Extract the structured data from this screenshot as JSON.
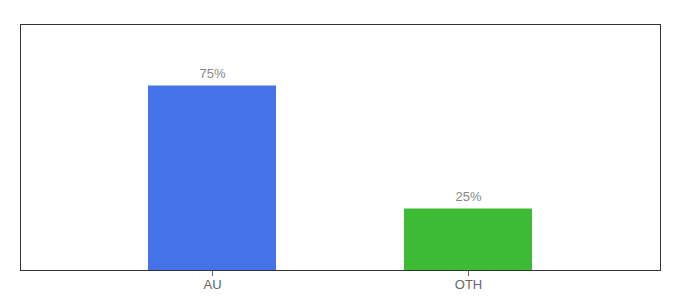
{
  "chart_data": {
    "type": "bar",
    "categories": [
      "AU",
      "OTH"
    ],
    "values": [
      75,
      25
    ],
    "value_labels": [
      "75%",
      "25%"
    ],
    "colors": [
      "#4472e8",
      "#3dbb35"
    ],
    "ylim": [
      0,
      100
    ],
    "data_labels": true,
    "tick_labels": "x"
  }
}
